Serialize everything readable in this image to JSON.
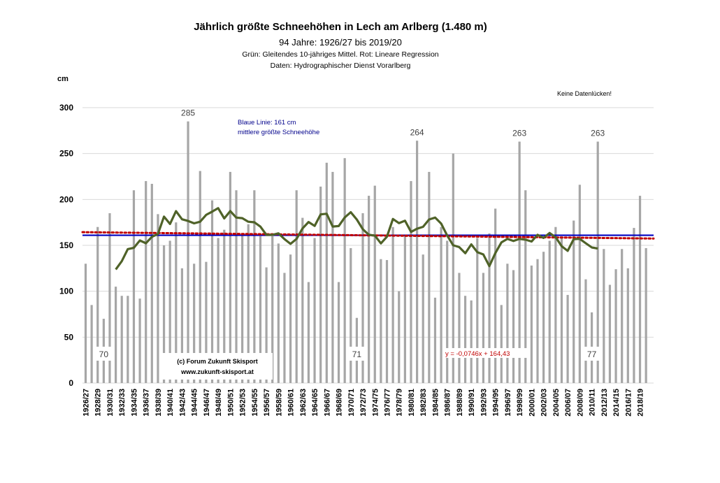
{
  "chart_data": {
    "type": "bar",
    "title": "Jährlich größte Schneehöhen in Lech am Arlberg (1.480 m)",
    "subtitle": "94 Jahre: 1926/27 bis 2019/20",
    "notes": [
      "Grün: Gleitendes 10-jähriges Mittel. Rot: Lineare Regression",
      "Daten: Hydrographischer Dienst Vorarlberg"
    ],
    "ylabel": "cm",
    "ylim": [
      0,
      300
    ],
    "yticks": [
      0,
      50,
      100,
      150,
      200,
      250,
      300
    ],
    "grid": true,
    "start_year": 1926,
    "values": [
      130,
      85,
      170,
      70,
      185,
      105,
      95,
      95,
      210,
      92,
      220,
      217,
      184,
      150,
      155,
      175,
      125,
      285,
      130,
      231,
      132,
      199,
      158,
      167,
      230,
      210,
      163,
      173,
      210,
      160,
      126,
      160,
      152,
      120,
      140,
      210,
      180,
      110,
      158,
      214,
      240,
      230,
      110,
      245,
      147,
      71,
      185,
      204,
      215,
      135,
      134,
      170,
      100,
      160,
      220,
      264,
      140,
      230,
      93,
      170,
      155,
      250,
      120,
      95,
      90,
      158,
      120,
      163,
      190,
      85,
      130,
      123,
      263,
      210,
      128,
      135,
      143,
      155,
      170,
      158,
      96,
      177,
      216,
      113,
      77,
      263,
      146,
      107,
      124,
      146,
      125,
      169,
      204,
      147
    ],
    "value_labels": [
      {
        "index": 3,
        "text": "70"
      },
      {
        "index": 17,
        "text": "285"
      },
      {
        "index": 45,
        "text": "71"
      },
      {
        "index": 55,
        "text": "264"
      },
      {
        "index": 72,
        "text": "263"
      },
      {
        "index": 84,
        "text": "77"
      },
      {
        "index": 85,
        "text": "263"
      }
    ],
    "mean_line": {
      "value": 161,
      "label1": "Blaue Linie: 161 cm",
      "label2": "mittlere größte Schneehöhe",
      "color": "#0000c0"
    },
    "regression": {
      "slope": -0.0746,
      "intercept": 164.43,
      "label": "y = -0,0746x + 164,43",
      "color": "#c00000"
    },
    "moving_average": {
      "window": 10,
      "color": "#4f6228"
    },
    "bar_color": "#a6a6a6",
    "annotation": "Keine Datenlücken!",
    "copyright": [
      "(c) Forum Zukunft Skisport",
      "www.zukunft-skisport.at"
    ]
  }
}
